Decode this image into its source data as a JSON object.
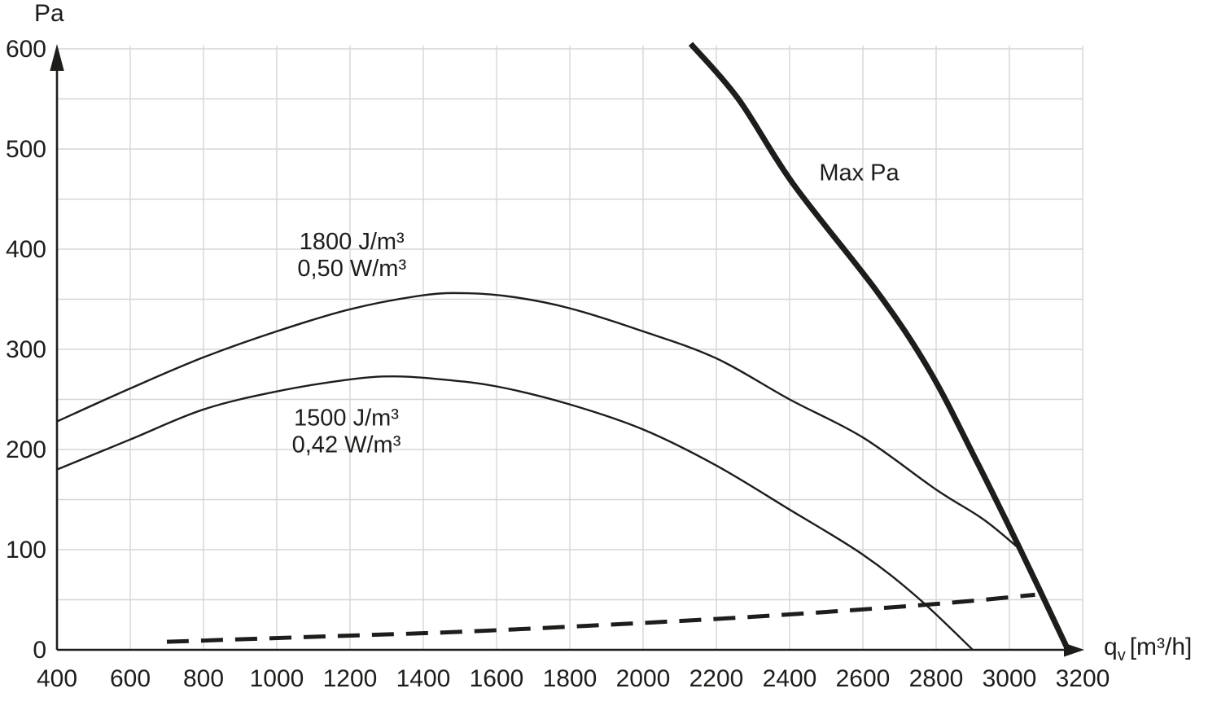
{
  "page": {
    "background": "#ffffff"
  },
  "chart_data": {
    "type": "line",
    "title": "",
    "ylabel": "Pa",
    "xlabel": "qv [m³/h]",
    "xlabel_parts": {
      "base": "q",
      "sub": "v",
      "unit": "[m³/h]"
    },
    "xlim": [
      400,
      3200
    ],
    "ylim": [
      0,
      600
    ],
    "x_ticks": [
      400,
      600,
      800,
      1000,
      1200,
      1400,
      1600,
      1800,
      2000,
      2200,
      2400,
      2600,
      2800,
      3000,
      3200
    ],
    "y_ticks": [
      0,
      100,
      200,
      300,
      400,
      500,
      600
    ],
    "x_grid_step": 200,
    "y_grid_step": 50,
    "grid": true,
    "legend": "none",
    "grid_color": "#d6d6d6",
    "axis_color": "#1d1d1b",
    "text_color": "#1d1d1b",
    "series": [
      {
        "name": "fan-curve-1800-jm3",
        "label": "1800 J/m³ 0,50 W/m³",
        "style": "thin",
        "stroke_width": 2.4,
        "smooth": true,
        "points": [
          [
            400,
            228
          ],
          [
            600,
            261
          ],
          [
            800,
            292
          ],
          [
            1000,
            318
          ],
          [
            1200,
            340
          ],
          [
            1400,
            354
          ],
          [
            1520,
            356
          ],
          [
            1650,
            352
          ],
          [
            1800,
            341
          ],
          [
            2000,
            318
          ],
          [
            2200,
            291
          ],
          [
            2400,
            250
          ],
          [
            2600,
            212
          ],
          [
            2800,
            160
          ],
          [
            2930,
            130
          ],
          [
            3030,
            100
          ]
        ]
      },
      {
        "name": "fan-curve-1500-jm3",
        "label": "1500 J/m³ 0,42 W/m³",
        "style": "thin",
        "stroke_width": 2.4,
        "smooth": true,
        "points": [
          [
            400,
            180
          ],
          [
            600,
            210
          ],
          [
            800,
            240
          ],
          [
            1000,
            258
          ],
          [
            1200,
            270
          ],
          [
            1320,
            273
          ],
          [
            1450,
            270
          ],
          [
            1600,
            263
          ],
          [
            1800,
            245
          ],
          [
            2000,
            220
          ],
          [
            2200,
            184
          ],
          [
            2400,
            140
          ],
          [
            2600,
            95
          ],
          [
            2750,
            52
          ],
          [
            2900,
            0
          ]
        ]
      },
      {
        "name": "max-pa-limit",
        "label": "Max Pa",
        "style": "thick",
        "stroke_width": 7,
        "smooth": true,
        "points": [
          [
            2130,
            605
          ],
          [
            2260,
            550
          ],
          [
            2410,
            465
          ],
          [
            2640,
            357
          ],
          [
            2780,
            280
          ],
          [
            2900,
            196
          ],
          [
            3030,
            100
          ],
          [
            3160,
            0
          ]
        ]
      },
      {
        "name": "system-load-line",
        "label": "",
        "style": "dashed",
        "stroke_width": 5,
        "dash": "27 15",
        "smooth": true,
        "points": [
          [
            700,
            8
          ],
          [
            1100,
            13
          ],
          [
            1500,
            18
          ],
          [
            1900,
            25
          ],
          [
            2300,
            33
          ],
          [
            2700,
            43
          ],
          [
            2900,
            49
          ],
          [
            3070,
            55
          ]
        ]
      }
    ],
    "annotations": [
      {
        "name": "label-1800-jm3",
        "lines": [
          "1800 J/m³",
          "0,50 W/m³"
        ],
        "q": 1205,
        "pa": 408
      },
      {
        "name": "label-1500-jm3",
        "lines": [
          "1500 J/m³",
          "0,42 W/m³"
        ],
        "q": 1190,
        "pa": 232
      },
      {
        "name": "label-max-pa",
        "lines": [
          "Max Pa"
        ],
        "q": 2590,
        "pa": 477
      }
    ]
  }
}
